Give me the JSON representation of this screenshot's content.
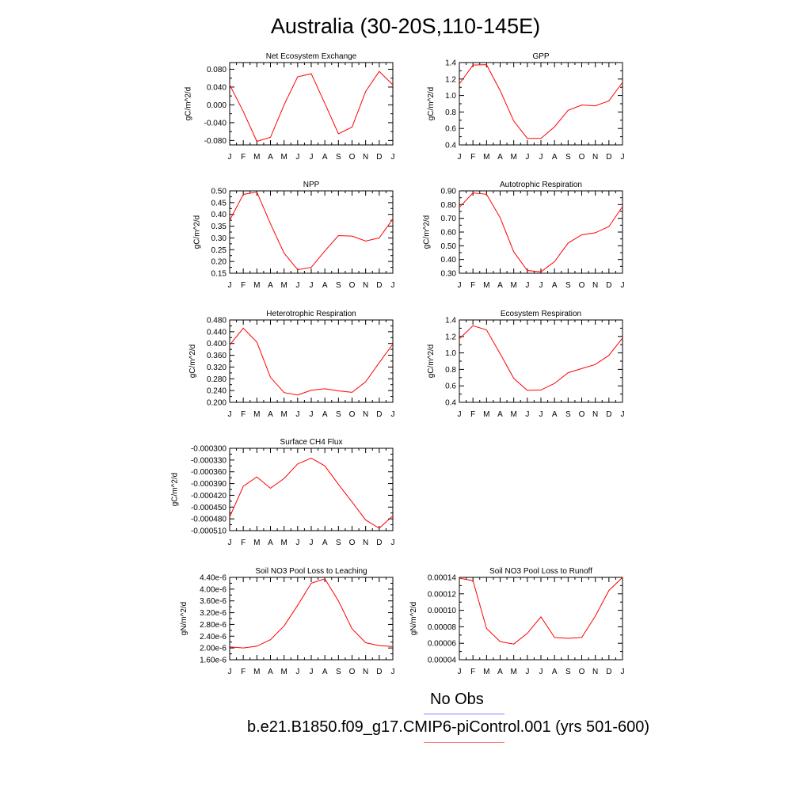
{
  "page": {
    "title": "Australia (30-20S,110-145E)"
  },
  "legend": {
    "items": [
      {
        "label": "No Obs",
        "color": "#7f7fff"
      },
      {
        "label": "b.e21.B1850.f09_g17.CMIP6-piControl.001 (yrs 501-600)",
        "color": "#ff7f7f"
      }
    ]
  },
  "line_color": "#ff0000",
  "months": [
    "J",
    "F",
    "M",
    "A",
    "M",
    "J",
    "J",
    "A",
    "S",
    "O",
    "N",
    "D",
    "J"
  ],
  "chart_data": [
    {
      "type": "line",
      "title": "Net Ecosystem Exchange",
      "ylabel": "gC/m^2/d",
      "ylim": [
        -0.09,
        0.095
      ],
      "yticks": [
        "-0.080",
        "-0.040",
        "0.000",
        "0.040",
        "0.080"
      ],
      "ytick_values": [
        -0.08,
        -0.04,
        0,
        0.04,
        0.08
      ],
      "values": [
        0.045,
        -0.015,
        -0.082,
        -0.073,
        0.0,
        0.063,
        0.07,
        0.003,
        -0.065,
        -0.05,
        0.03,
        0.075,
        0.045
      ]
    },
    {
      "type": "line",
      "title": "GPP",
      "ylabel": "gC/m^2/d",
      "ylim": [
        0.4,
        1.4
      ],
      "yticks": [
        "0.4",
        "0.6",
        "0.8",
        "1.0",
        "1.2",
        "1.4"
      ],
      "ytick_values": [
        0.4,
        0.6,
        0.8,
        1.0,
        1.2,
        1.4
      ],
      "values": [
        1.14,
        1.37,
        1.375,
        1.06,
        0.69,
        0.48,
        0.48,
        0.62,
        0.82,
        0.885,
        0.875,
        0.935,
        1.16
      ]
    },
    {
      "type": "line",
      "title": "NPP",
      "ylabel": "gC/m^2/d",
      "ylim": [
        0.15,
        0.5
      ],
      "yticks": [
        "0.15",
        "0.20",
        "0.25",
        "0.30",
        "0.35",
        "0.40",
        "0.45",
        "0.50"
      ],
      "ytick_values": [
        0.15,
        0.2,
        0.25,
        0.3,
        0.35,
        0.4,
        0.45,
        0.5
      ],
      "values": [
        0.375,
        0.485,
        0.495,
        0.36,
        0.235,
        0.165,
        0.175,
        0.245,
        0.31,
        0.308,
        0.287,
        0.3,
        0.38
      ]
    },
    {
      "type": "line",
      "title": "Autotrophic Respiration",
      "ylabel": "gC/m^2/d",
      "ylim": [
        0.3,
        0.9
      ],
      "yticks": [
        "0.30",
        "0.40",
        "0.50",
        "0.60",
        "0.70",
        "0.80",
        "0.90"
      ],
      "ytick_values": [
        0.3,
        0.4,
        0.5,
        0.6,
        0.7,
        0.8,
        0.9
      ],
      "values": [
        0.78,
        0.885,
        0.875,
        0.705,
        0.455,
        0.32,
        0.31,
        0.385,
        0.52,
        0.58,
        0.595,
        0.64,
        0.785
      ]
    },
    {
      "type": "line",
      "title": "Heterotrophic Respiration",
      "ylabel": "gC/m^2/d",
      "ylim": [
        0.2,
        0.48
      ],
      "yticks": [
        "0.200",
        "0.240",
        "0.280",
        "0.320",
        "0.360",
        "0.400",
        "0.440",
        "0.480"
      ],
      "ytick_values": [
        0.2,
        0.24,
        0.28,
        0.32,
        0.36,
        0.4,
        0.44,
        0.48
      ],
      "values": [
        0.395,
        0.452,
        0.405,
        0.285,
        0.233,
        0.225,
        0.241,
        0.246,
        0.239,
        0.234,
        0.27,
        0.335,
        0.398
      ]
    },
    {
      "type": "line",
      "title": "Ecosystem Respiration",
      "ylabel": "gC/m^2/d",
      "ylim": [
        0.4,
        1.4
      ],
      "yticks": [
        "0.4",
        "0.6",
        "0.8",
        "1.0",
        "1.2",
        "1.4"
      ],
      "ytick_values": [
        0.4,
        0.6,
        0.8,
        1.0,
        1.2,
        1.4
      ],
      "values": [
        1.17,
        1.33,
        1.28,
        0.99,
        0.69,
        0.545,
        0.55,
        0.63,
        0.76,
        0.81,
        0.86,
        0.97,
        1.18
      ]
    },
    {
      "type": "line",
      "title": "Surface CH4 Flux",
      "ylabel": "gC/m^2/d",
      "ylim": [
        -0.00051,
        -0.0003
      ],
      "yticks": [
        "-0.000510",
        "-0.000480",
        "-0.000450",
        "-0.000420",
        "-0.000390",
        "-0.000360",
        "-0.000330",
        "-0.000300"
      ],
      "ytick_values": [
        -0.00051,
        -0.00048,
        -0.00045,
        -0.00042,
        -0.00039,
        -0.00036,
        -0.00033,
        -0.0003
      ],
      "values": [
        -0.000475,
        -0.000397,
        -0.000373,
        -0.000402,
        -0.000377,
        -0.00034,
        -0.000325,
        -0.000345,
        -0.000392,
        -0.000437,
        -0.000483,
        -0.000504,
        -0.000472
      ]
    },
    {
      "type": "line",
      "title": "Soil NO3 Pool Loss to Leaching",
      "ylabel": "gN/m^2/d",
      "ylim": [
        1.6e-06,
        4.4e-06
      ],
      "yticks": [
        "1.60e-6",
        "2.00e-6",
        "2.40e-6",
        "2.80e-6",
        "3.20e-6",
        "3.60e-6",
        "4.00e-6",
        "4.40e-6"
      ],
      "ytick_values": [
        1.6e-06,
        2e-06,
        2.4e-06,
        2.8e-06,
        3.2e-06,
        3.6e-06,
        4e-06,
        4.4e-06
      ],
      "values": [
        2.04e-06,
        2e-06,
        2.06e-06,
        2.28e-06,
        2.75e-06,
        3.45e-06,
        4.2e-06,
        4.35e-06,
        3.6e-06,
        2.65e-06,
        2.18e-06,
        2.08e-06,
        2.05e-06
      ]
    },
    {
      "type": "line",
      "title": "Soil NO3 Pool Loss to Runoff",
      "ylabel": "gN/m^2/d",
      "ylim": [
        4e-05,
        0.00014
      ],
      "yticks": [
        "0.00004",
        "0.00006",
        "0.00008",
        "0.00010",
        "0.00012",
        "0.00014"
      ],
      "ytick_values": [
        4e-05,
        6e-05,
        8e-05,
        0.0001,
        0.00012,
        0.00014
      ],
      "values": [
        0.000139,
        0.000136,
        7.8e-05,
        6.2e-05,
        5.9e-05,
        7.2e-05,
        9.2e-05,
        6.7e-05,
        6.6e-05,
        6.7e-05,
        9.3e-05,
        0.000124,
        0.00014
      ]
    }
  ]
}
